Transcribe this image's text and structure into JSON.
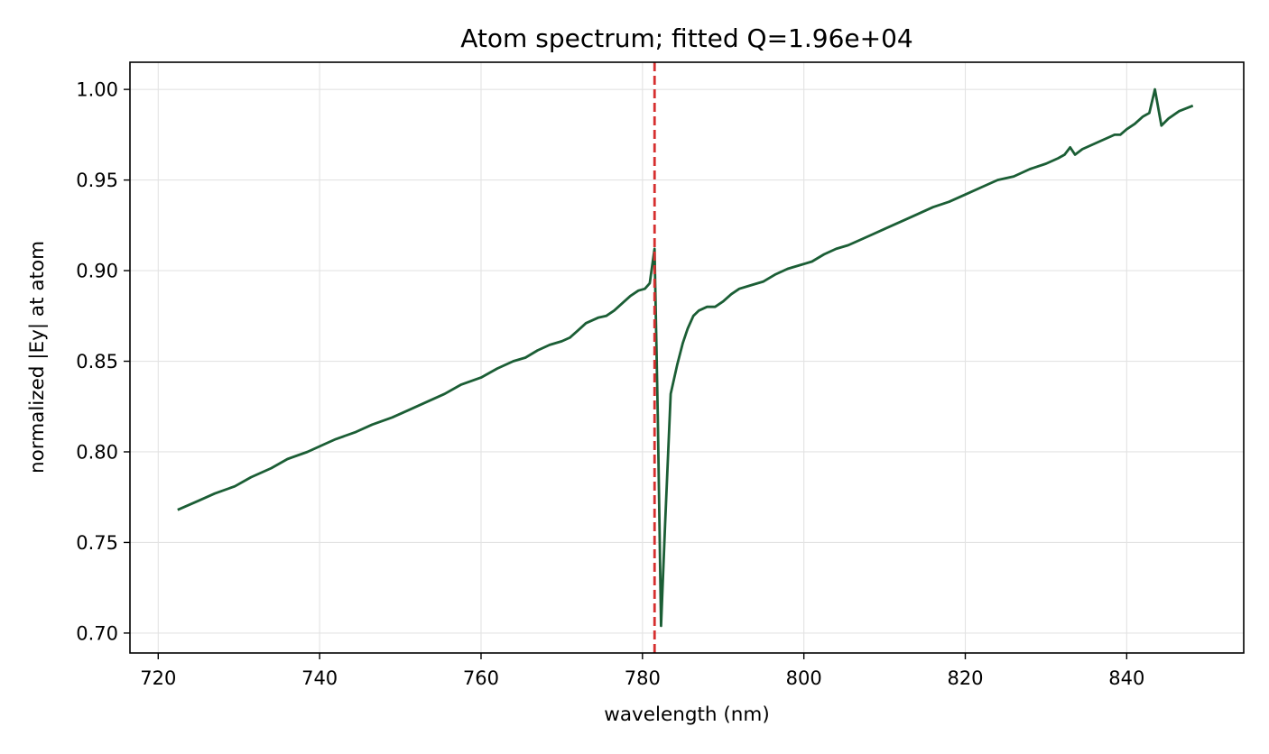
{
  "chart_data": {
    "type": "line",
    "title": "Atom spectrum; fitted Q=1.96e+04",
    "xlabel": "wavelength (nm)",
    "ylabel": "normalized |Ey| at atom",
    "xlim": [
      716.5,
      854.5
    ],
    "ylim": [
      0.689,
      1.015
    ],
    "xticks": [
      720,
      740,
      760,
      780,
      800,
      820,
      840
    ],
    "yticks": [
      0.7,
      0.75,
      0.8,
      0.85,
      0.9,
      0.95,
      1.0
    ],
    "xtick_labels": [
      "720",
      "740",
      "760",
      "780",
      "800",
      "820",
      "840"
    ],
    "ytick_labels": [
      "0.70",
      "0.75",
      "0.80",
      "0.85",
      "0.90",
      "0.95",
      "1.00"
    ],
    "grid": true,
    "series": [
      {
        "color": "#1b5e35",
        "x": [
          722.4,
          725.0,
          727.0,
          729.5,
          731.5,
          734.0,
          736.0,
          738.5,
          740.5,
          742.0,
          744.5,
          746.5,
          749.0,
          751.0,
          753.5,
          755.5,
          757.5,
          760.0,
          762.0,
          764.0,
          765.5,
          767.0,
          768.5,
          770.0,
          771.0,
          772.0,
          773.0,
          774.5,
          775.5,
          776.5,
          777.5,
          778.5,
          779.5,
          780.3,
          780.9,
          781.5,
          781.9,
          782.3,
          782.8,
          783.5,
          784.3,
          785.0,
          785.6,
          786.3,
          787.0,
          788.0,
          789.0,
          790.0,
          791.0,
          792.0,
          793.5,
          795.0,
          796.5,
          798.0,
          799.5,
          801.0,
          802.5,
          804.0,
          805.5,
          807.0,
          808.5,
          810.0,
          812.0,
          814.0,
          816.0,
          818.0,
          820.0,
          822.0,
          824.0,
          826.0,
          828.0,
          830.0,
          831.5,
          832.3,
          833.0,
          833.6,
          834.5,
          835.5,
          837.0,
          838.0,
          838.5,
          839.2,
          840.0,
          841.0,
          842.0,
          842.8,
          843.5,
          844.3,
          845.2,
          846.5,
          848.2
        ],
        "y": [
          0.768,
          0.773,
          0.777,
          0.781,
          0.786,
          0.791,
          0.796,
          0.8,
          0.804,
          0.807,
          0.811,
          0.815,
          0.819,
          0.823,
          0.828,
          0.832,
          0.837,
          0.841,
          0.846,
          0.85,
          0.852,
          0.856,
          0.859,
          0.861,
          0.863,
          0.867,
          0.871,
          0.874,
          0.875,
          0.878,
          0.882,
          0.886,
          0.889,
          0.89,
          0.893,
          0.912,
          0.82,
          0.704,
          0.76,
          0.832,
          0.848,
          0.86,
          0.868,
          0.875,
          0.878,
          0.88,
          0.88,
          0.883,
          0.887,
          0.89,
          0.892,
          0.894,
          0.898,
          0.901,
          0.903,
          0.905,
          0.909,
          0.912,
          0.914,
          0.917,
          0.92,
          0.923,
          0.927,
          0.931,
          0.935,
          0.938,
          0.942,
          0.946,
          0.95,
          0.952,
          0.956,
          0.959,
          0.962,
          0.964,
          0.968,
          0.964,
          0.967,
          0.969,
          0.972,
          0.974,
          0.975,
          0.975,
          0.978,
          0.981,
          0.985,
          0.987,
          1.0,
          0.98,
          0.984,
          0.988,
          0.991
        ]
      }
    ],
    "vlines": [
      {
        "x": 781.5,
        "color": "#d62f2f",
        "style": "dashed"
      }
    ]
  }
}
